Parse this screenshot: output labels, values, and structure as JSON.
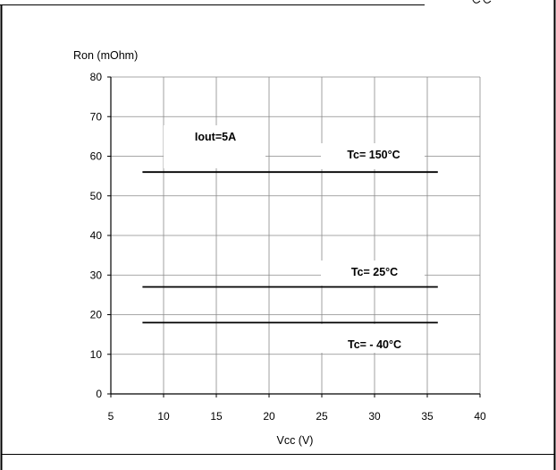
{
  "chart_data": {
    "type": "line",
    "ylabel": "Ron (mOhm)",
    "xlabel": "Vcc (V)",
    "xlim": [
      5,
      40
    ],
    "ylim": [
      0,
      80
    ],
    "xticks": [
      5,
      10,
      15,
      20,
      25,
      30,
      35,
      40
    ],
    "yticks": [
      0,
      10,
      20,
      30,
      40,
      50,
      60,
      70,
      80
    ],
    "grid": true,
    "annotations": [
      "Iout=5A"
    ],
    "series": [
      {
        "name": "Tc= 150°C",
        "x": [
          8,
          36
        ],
        "y": [
          56,
          56
        ]
      },
      {
        "name": "Tc= 25°C",
        "x": [
          8,
          36
        ],
        "y": [
          27,
          27
        ]
      },
      {
        "name": "Tc= - 40°C",
        "x": [
          8,
          36
        ],
        "y": [
          18,
          18
        ]
      }
    ]
  }
}
